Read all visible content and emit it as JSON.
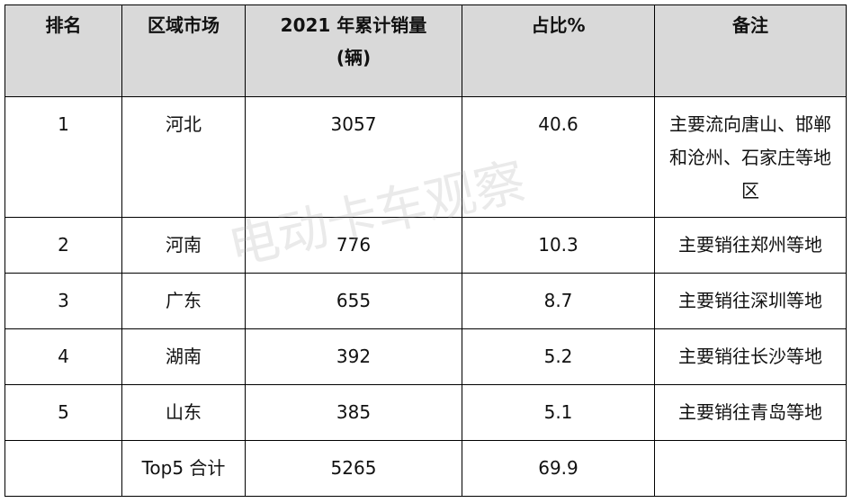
{
  "table": {
    "header": [
      "排名",
      "区域市场",
      "2021 年累计销量\n(辆)",
      "占比%",
      "备注"
    ],
    "rows": [
      [
        1,
        "河北",
        3057,
        40.6,
        "主要流向唐山、邯郸和沧州、石家庄等地区"
      ],
      [
        2,
        "河南",
        776,
        10.3,
        "主要销往郑州等地"
      ],
      [
        3,
        "广东",
        655,
        8.7,
        "主要销往深圳等地"
      ],
      [
        4,
        "湖南",
        392,
        5.2,
        "主要销往长沙等地"
      ],
      [
        5,
        "山东",
        385,
        5.1,
        "主要销往青岛等地"
      ]
    ],
    "total": {
      "label": "Top5 合计",
      "volume": 5265,
      "share": 69.9
    }
  },
  "watermark": "电动卡车观察"
}
